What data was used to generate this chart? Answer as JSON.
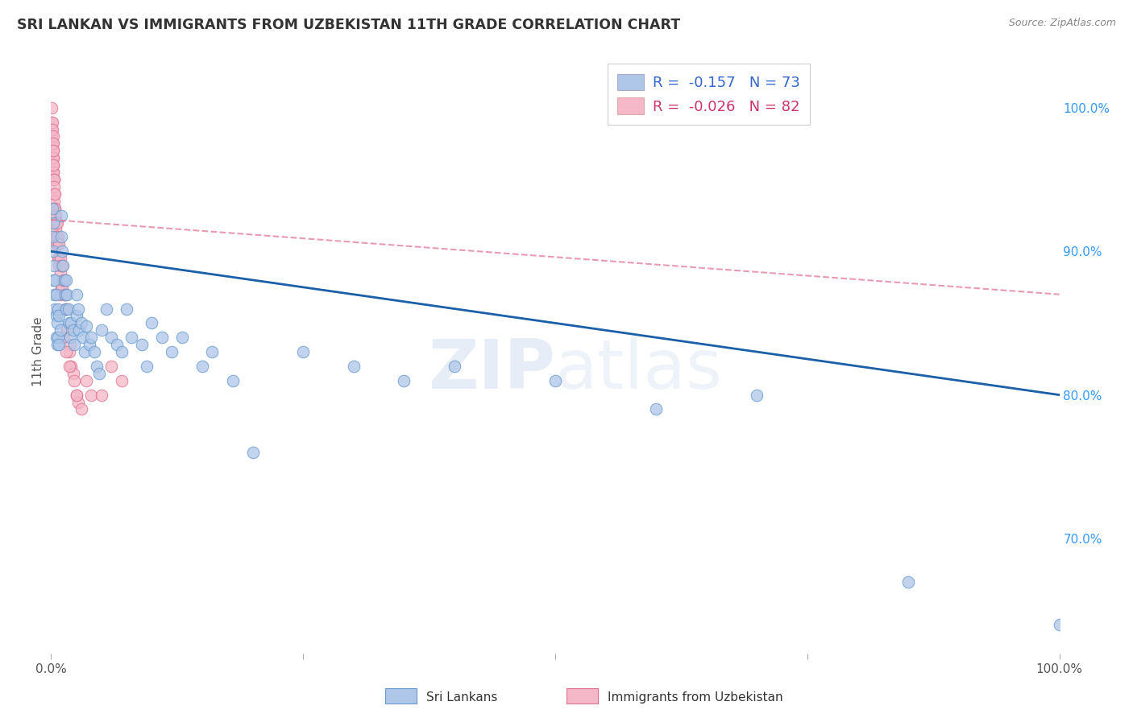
{
  "title": "SRI LANKAN VS IMMIGRANTS FROM UZBEKISTAN 11TH GRADE CORRELATION CHART",
  "source": "Source: ZipAtlas.com",
  "ylabel": "11th Grade",
  "background_color": "#ffffff",
  "grid_color": "#cccccc",
  "watermark_zip": "ZIP",
  "watermark_atlas": "atlas",
  "legend": {
    "r1": -0.157,
    "n1": 73,
    "r2": -0.026,
    "n2": 82,
    "color1": "#aec6e8",
    "color2": "#f4b8c8"
  },
  "sri_lankans": {
    "color": "#aec6e8",
    "edge_color": "#6699cc",
    "x": [
      0.001,
      0.001,
      0.002,
      0.002,
      0.002,
      0.003,
      0.003,
      0.004,
      0.004,
      0.005,
      0.005,
      0.005,
      0.006,
      0.006,
      0.007,
      0.007,
      0.008,
      0.008,
      0.009,
      0.01,
      0.01,
      0.011,
      0.012,
      0.013,
      0.014,
      0.015,
      0.015,
      0.016,
      0.017,
      0.018,
      0.019,
      0.02,
      0.022,
      0.023,
      0.025,
      0.025,
      0.027,
      0.028,
      0.03,
      0.032,
      0.033,
      0.035,
      0.038,
      0.04,
      0.043,
      0.045,
      0.048,
      0.05,
      0.055,
      0.06,
      0.065,
      0.07,
      0.075,
      0.08,
      0.09,
      0.095,
      0.1,
      0.11,
      0.12,
      0.13,
      0.15,
      0.16,
      0.18,
      0.2,
      0.25,
      0.3,
      0.35,
      0.4,
      0.5,
      0.6,
      0.7,
      0.85,
      1.0
    ],
    "y": [
      0.93,
      0.91,
      0.92,
      0.9,
      0.88,
      0.89,
      0.87,
      0.88,
      0.86,
      0.87,
      0.855,
      0.84,
      0.85,
      0.835,
      0.86,
      0.84,
      0.855,
      0.835,
      0.845,
      0.925,
      0.91,
      0.9,
      0.89,
      0.88,
      0.87,
      0.88,
      0.86,
      0.87,
      0.86,
      0.85,
      0.84,
      0.85,
      0.845,
      0.835,
      0.87,
      0.855,
      0.86,
      0.845,
      0.85,
      0.84,
      0.83,
      0.848,
      0.835,
      0.84,
      0.83,
      0.82,
      0.815,
      0.845,
      0.86,
      0.84,
      0.835,
      0.83,
      0.86,
      0.84,
      0.835,
      0.82,
      0.85,
      0.84,
      0.83,
      0.84,
      0.82,
      0.83,
      0.81,
      0.76,
      0.83,
      0.82,
      0.81,
      0.82,
      0.81,
      0.79,
      0.8,
      0.67,
      0.64
    ]
  },
  "uzbekistan": {
    "color": "#f4b8c8",
    "edge_color": "#e07090",
    "x": [
      0.0005,
      0.0007,
      0.0008,
      0.0009,
      0.001,
      0.001,
      0.001,
      0.0012,
      0.0013,
      0.0014,
      0.0015,
      0.0015,
      0.0016,
      0.0017,
      0.0018,
      0.0019,
      0.002,
      0.002,
      0.002,
      0.002,
      0.002,
      0.0022,
      0.0023,
      0.0024,
      0.0025,
      0.0025,
      0.0026,
      0.0027,
      0.0028,
      0.003,
      0.003,
      0.003,
      0.003,
      0.0032,
      0.0033,
      0.0034,
      0.0035,
      0.0036,
      0.004,
      0.004,
      0.0042,
      0.0044,
      0.0046,
      0.005,
      0.005,
      0.0055,
      0.006,
      0.006,
      0.007,
      0.007,
      0.0075,
      0.008,
      0.008,
      0.009,
      0.009,
      0.009,
      0.01,
      0.01,
      0.011,
      0.011,
      0.012,
      0.013,
      0.014,
      0.015,
      0.016,
      0.018,
      0.019,
      0.02,
      0.022,
      0.023,
      0.025,
      0.027,
      0.03,
      0.035,
      0.04,
      0.05,
      0.06,
      0.07,
      0.012,
      0.015,
      0.018,
      0.025
    ],
    "y": [
      1.0,
      0.99,
      0.985,
      0.98,
      0.975,
      0.97,
      0.965,
      0.96,
      0.99,
      0.975,
      0.97,
      0.96,
      0.985,
      0.975,
      0.965,
      0.955,
      0.98,
      0.97,
      0.96,
      0.95,
      0.94,
      0.975,
      0.965,
      0.955,
      0.97,
      0.96,
      0.95,
      0.94,
      0.93,
      0.95,
      0.94,
      0.93,
      0.92,
      0.945,
      0.935,
      0.925,
      0.94,
      0.93,
      0.93,
      0.92,
      0.925,
      0.915,
      0.905,
      0.92,
      0.91,
      0.91,
      0.92,
      0.905,
      0.91,
      0.895,
      0.895,
      0.905,
      0.89,
      0.895,
      0.885,
      0.87,
      0.89,
      0.875,
      0.89,
      0.875,
      0.88,
      0.87,
      0.86,
      0.86,
      0.845,
      0.83,
      0.835,
      0.82,
      0.815,
      0.81,
      0.8,
      0.795,
      0.79,
      0.81,
      0.8,
      0.8,
      0.82,
      0.81,
      0.84,
      0.83,
      0.82,
      0.8
    ]
  },
  "trendline_sri": {
    "x_start": 0.0,
    "x_end": 1.0,
    "y_start": 0.9,
    "y_end": 0.8,
    "color": "#1a5fa8",
    "linewidth": 2.0
  },
  "trendline_uzb": {
    "x_start": 0.0,
    "x_end": 1.0,
    "y_start": 0.922,
    "y_end": 0.87,
    "color": "#e07090",
    "linewidth": 1.5,
    "linestyle": "--"
  },
  "xlim": [
    0.0,
    1.0
  ],
  "ylim": [
    0.62,
    1.04
  ],
  "yticks": [
    1.0,
    0.9,
    0.8,
    0.7
  ],
  "ytick_labels": [
    "100.0%",
    "90.0%",
    "80.0%",
    "70.0%"
  ],
  "xticks": [
    0.0,
    0.25,
    0.5,
    0.75,
    1.0
  ],
  "xtick_labels": [
    "0.0%",
    "",
    "",
    "",
    "100.0%"
  ]
}
